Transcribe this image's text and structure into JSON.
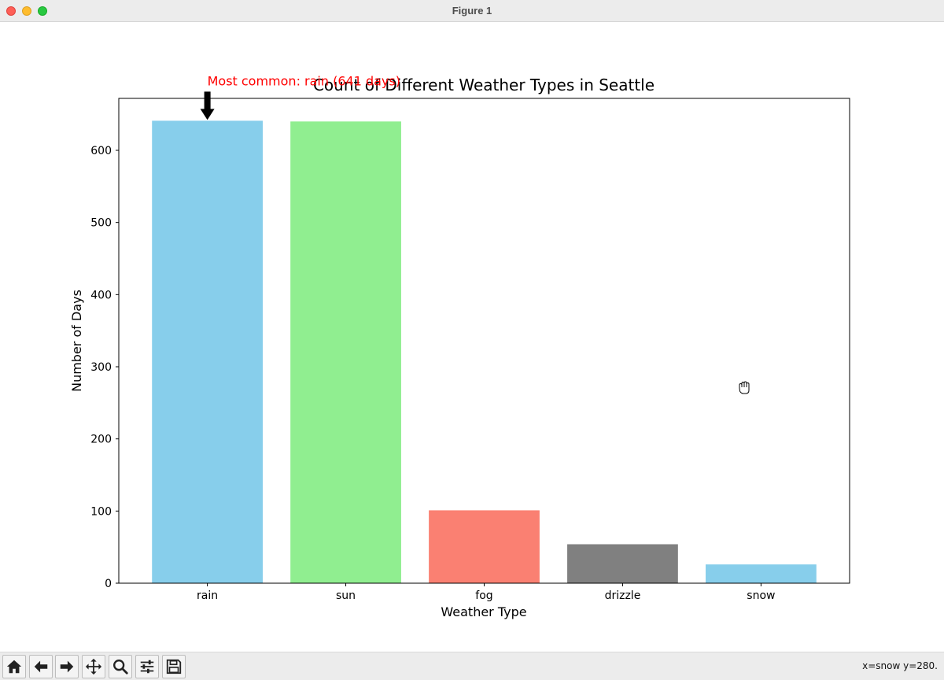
{
  "window": {
    "title": "Figure 1"
  },
  "chart_data": {
    "type": "bar",
    "title": "Count of Different Weather Types in Seattle",
    "xlabel": "Weather Type",
    "ylabel": "Number of Days",
    "categories": [
      "rain",
      "sun",
      "fog",
      "drizzle",
      "snow"
    ],
    "values": [
      641,
      640,
      101,
      54,
      26
    ],
    "colors": [
      "#87ceeb",
      "#90ee90",
      "#fa8072",
      "#808080",
      "#87ceeb"
    ],
    "ylim": [
      0,
      672
    ],
    "yticks": [
      0,
      100,
      200,
      300,
      400,
      500,
      600
    ],
    "grid": false,
    "annotation": {
      "text": "Most common: rain (641 days)",
      "color": "#ff0000",
      "target_category": "rain",
      "target_value": 641
    }
  },
  "toolbar": {
    "buttons": [
      {
        "name": "home-button",
        "icon": "home-icon"
      },
      {
        "name": "back-button",
        "icon": "arrow-left-icon"
      },
      {
        "name": "forward-button",
        "icon": "arrow-right-icon"
      },
      {
        "name": "pan-button",
        "icon": "move-icon"
      },
      {
        "name": "zoom-button",
        "icon": "magnifier-icon"
      },
      {
        "name": "configure-subplots-button",
        "icon": "sliders-icon"
      },
      {
        "name": "save-button",
        "icon": "floppy-disk-icon"
      }
    ],
    "coords_text": "x=snow y=280."
  }
}
